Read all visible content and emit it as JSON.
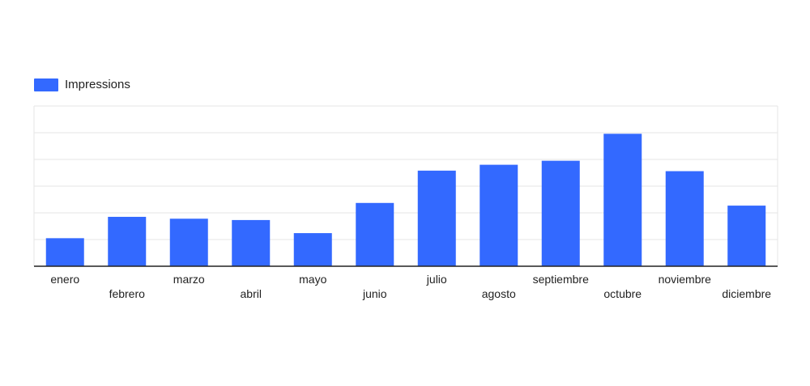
{
  "chart_data": {
    "type": "bar",
    "categories": [
      "enero",
      "febrero",
      "marzo",
      "abril",
      "mayo",
      "junio",
      "julio",
      "agosto",
      "septiembre",
      "octubre",
      "noviembre",
      "diciembre"
    ],
    "series": [
      {
        "name": "Impressions",
        "color": "#3369ff",
        "values": [
          10.5,
          18.5,
          17.8,
          17.3,
          12.4,
          23.7,
          35.8,
          38.0,
          39.5,
          49.6,
          35.6,
          22.7
        ]
      }
    ],
    "ylim": [
      0,
      60
    ],
    "gridline_step": 10,
    "grid": true,
    "y_tick_labels_shown": false,
    "legend_position": "top-left"
  }
}
